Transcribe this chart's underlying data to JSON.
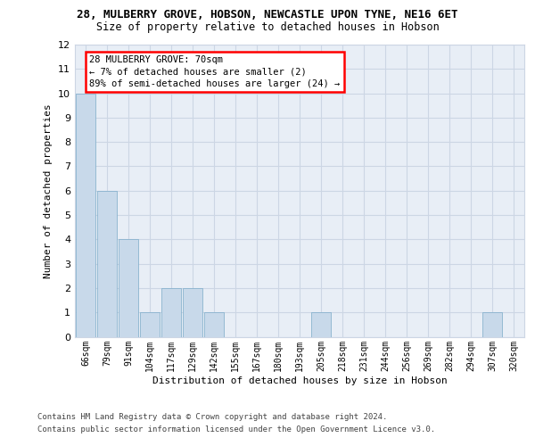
{
  "title": "28, MULBERRY GROVE, HOBSON, NEWCASTLE UPON TYNE, NE16 6ET",
  "subtitle": "Size of property relative to detached houses in Hobson",
  "xlabel": "Distribution of detached houses by size in Hobson",
  "ylabel": "Number of detached properties",
  "categories": [
    "66sqm",
    "79sqm",
    "91sqm",
    "104sqm",
    "117sqm",
    "129sqm",
    "142sqm",
    "155sqm",
    "167sqm",
    "180sqm",
    "193sqm",
    "205sqm",
    "218sqm",
    "231sqm",
    "244sqm",
    "256sqm",
    "269sqm",
    "282sqm",
    "294sqm",
    "307sqm",
    "320sqm"
  ],
  "values": [
    10,
    6,
    4,
    1,
    2,
    2,
    1,
    0,
    0,
    0,
    0,
    1,
    0,
    0,
    0,
    0,
    0,
    0,
    0,
    1,
    0
  ],
  "bar_color": "#c8d9ea",
  "bar_edge_color": "#7aaac8",
  "ylim_max": 12,
  "yticks": [
    0,
    1,
    2,
    3,
    4,
    5,
    6,
    7,
    8,
    9,
    10,
    11,
    12
  ],
  "annotation_line1": "28 MULBERRY GROVE: 70sqm",
  "annotation_line2": "← 7% of detached houses are smaller (2)",
  "annotation_line3": "89% of semi-detached houses are larger (24) →",
  "grid_color": "#ccd6e4",
  "bg_color": "#e8eef6",
  "footer_line1": "Contains HM Land Registry data © Crown copyright and database right 2024.",
  "footer_line2": "Contains public sector information licensed under the Open Government Licence v3.0.",
  "title_fontsize": 9,
  "subtitle_fontsize": 8.5,
  "ylabel_fontsize": 8,
  "xlabel_fontsize": 8,
  "ytick_fontsize": 8,
  "xtick_fontsize": 7,
  "footer_fontsize": 6.5,
  "annot_fontsize": 7.5
}
